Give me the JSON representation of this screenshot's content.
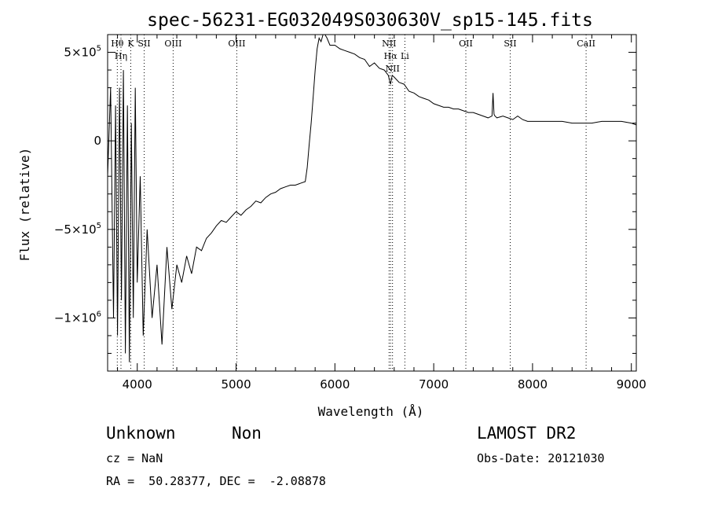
{
  "chart_data": {
    "type": "line",
    "title": "spec-56231-EG032049S030630V_sp15-145.fits",
    "xlabel": "Wavelength (Å)",
    "ylabel": "Flux (relative)",
    "xlim": [
      3700,
      9050
    ],
    "ylim": [
      -1300000,
      600000
    ],
    "x_ticks": [
      {
        "value": 4000,
        "label": "4000"
      },
      {
        "value": 5000,
        "label": "5000"
      },
      {
        "value": 6000,
        "label": "6000"
      },
      {
        "value": 7000,
        "label": "7000"
      },
      {
        "value": 8000,
        "label": "8000"
      },
      {
        "value": 9000,
        "label": "9000"
      }
    ],
    "y_ticks": [
      {
        "value": 500000,
        "base": "5×10",
        "exp": "5"
      },
      {
        "value": 0,
        "base": "0",
        "exp": ""
      },
      {
        "value": -500000,
        "base": "−5×10",
        "exp": "5"
      },
      {
        "value": -1000000,
        "base": "−1×10",
        "exp": "6"
      }
    ],
    "grid": false,
    "spectral_lines": [
      {
        "x": 3798,
        "label": "Hθ"
      },
      {
        "x": 3835,
        "label": "Hη"
      },
      {
        "x": 3934,
        "label": "K"
      },
      {
        "x": 4070,
        "label": "SII"
      },
      {
        "x": 4363,
        "label": "OIII"
      },
      {
        "x": 5007,
        "label": "OIII"
      },
      {
        "x": 6548,
        "label": "NII"
      },
      {
        "x": 6563,
        "label": "Hα"
      },
      {
        "x": 6583,
        "label": "NII"
      },
      {
        "x": 6708,
        "label": "Li"
      },
      {
        "x": 7325,
        "label": "OII"
      },
      {
        "x": 7774,
        "label": "SII"
      },
      {
        "x": 8542,
        "label": "CaII"
      }
    ],
    "series": [
      {
        "x": [
          3700,
          3730,
          3760,
          3780,
          3800,
          3820,
          3840,
          3860,
          3880,
          3900,
          3920,
          3940,
          3960,
          3980,
          4000,
          4030,
          4060,
          4100,
          4150,
          4200,
          4250,
          4300,
          4350,
          4400,
          4450,
          4500,
          4550,
          4600,
          4650,
          4700,
          4750,
          4800,
          4850,
          4900,
          4950,
          5000,
          5050,
          5100,
          5150,
          5200,
          5250,
          5300,
          5350,
          5400,
          5450,
          5500,
          5550,
          5600,
          5650,
          5700,
          5720,
          5740,
          5760,
          5780,
          5800,
          5820,
          5840,
          5860,
          5880,
          5900,
          5920,
          5950,
          6000,
          6050,
          6100,
          6150,
          6200,
          6250,
          6300,
          6350,
          6400,
          6450,
          6500,
          6540,
          6563,
          6580,
          6600,
          6650,
          6700,
          6750,
          6800,
          6850,
          6900,
          6950,
          7000,
          7050,
          7100,
          7150,
          7200,
          7250,
          7300,
          7350,
          7400,
          7450,
          7500,
          7550,
          7590,
          7600,
          7610,
          7620,
          7640,
          7700,
          7750,
          7800,
          7850,
          7900,
          7950,
          8000,
          8100,
          8200,
          8300,
          8400,
          8500,
          8600,
          8700,
          8800,
          8900,
          9000,
          9050
        ],
        "y": [
          -200000,
          300000,
          -1000000,
          200000,
          -1100000,
          300000,
          -900000,
          400000,
          -1200000,
          200000,
          -1250000,
          100000,
          -1000000,
          300000,
          -800000,
          -200000,
          -1100000,
          -500000,
          -1000000,
          -700000,
          -1150000,
          -600000,
          -950000,
          -700000,
          -800000,
          -650000,
          -750000,
          -600000,
          -620000,
          -550000,
          -520000,
          -480000,
          -450000,
          -460000,
          -430000,
          -400000,
          -420000,
          -390000,
          -370000,
          -340000,
          -350000,
          -320000,
          -300000,
          -290000,
          -270000,
          -260000,
          -250000,
          -250000,
          -240000,
          -230000,
          -150000,
          -20000,
          100000,
          250000,
          400000,
          520000,
          580000,
          560000,
          600000,
          620000,
          580000,
          540000,
          540000,
          520000,
          510000,
          500000,
          490000,
          470000,
          460000,
          420000,
          440000,
          410000,
          400000,
          370000,
          320000,
          370000,
          360000,
          330000,
          320000,
          280000,
          270000,
          250000,
          240000,
          230000,
          210000,
          200000,
          190000,
          190000,
          180000,
          180000,
          170000,
          160000,
          160000,
          150000,
          140000,
          130000,
          140000,
          270000,
          150000,
          140000,
          130000,
          140000,
          130000,
          120000,
          140000,
          120000,
          110000,
          110000,
          110000,
          110000,
          110000,
          100000,
          100000,
          100000,
          110000,
          110000,
          110000,
          100000,
          90000
        ]
      }
    ]
  },
  "footer": {
    "class_label": "Unknown",
    "subclass_label": "Non",
    "cz_text": "cz = NaN",
    "coords_text": "RA =  50.28377, DEC =  -2.08878",
    "survey_label": "LAMOST DR2",
    "obs_date_text": "Obs-Date: 20121030"
  }
}
